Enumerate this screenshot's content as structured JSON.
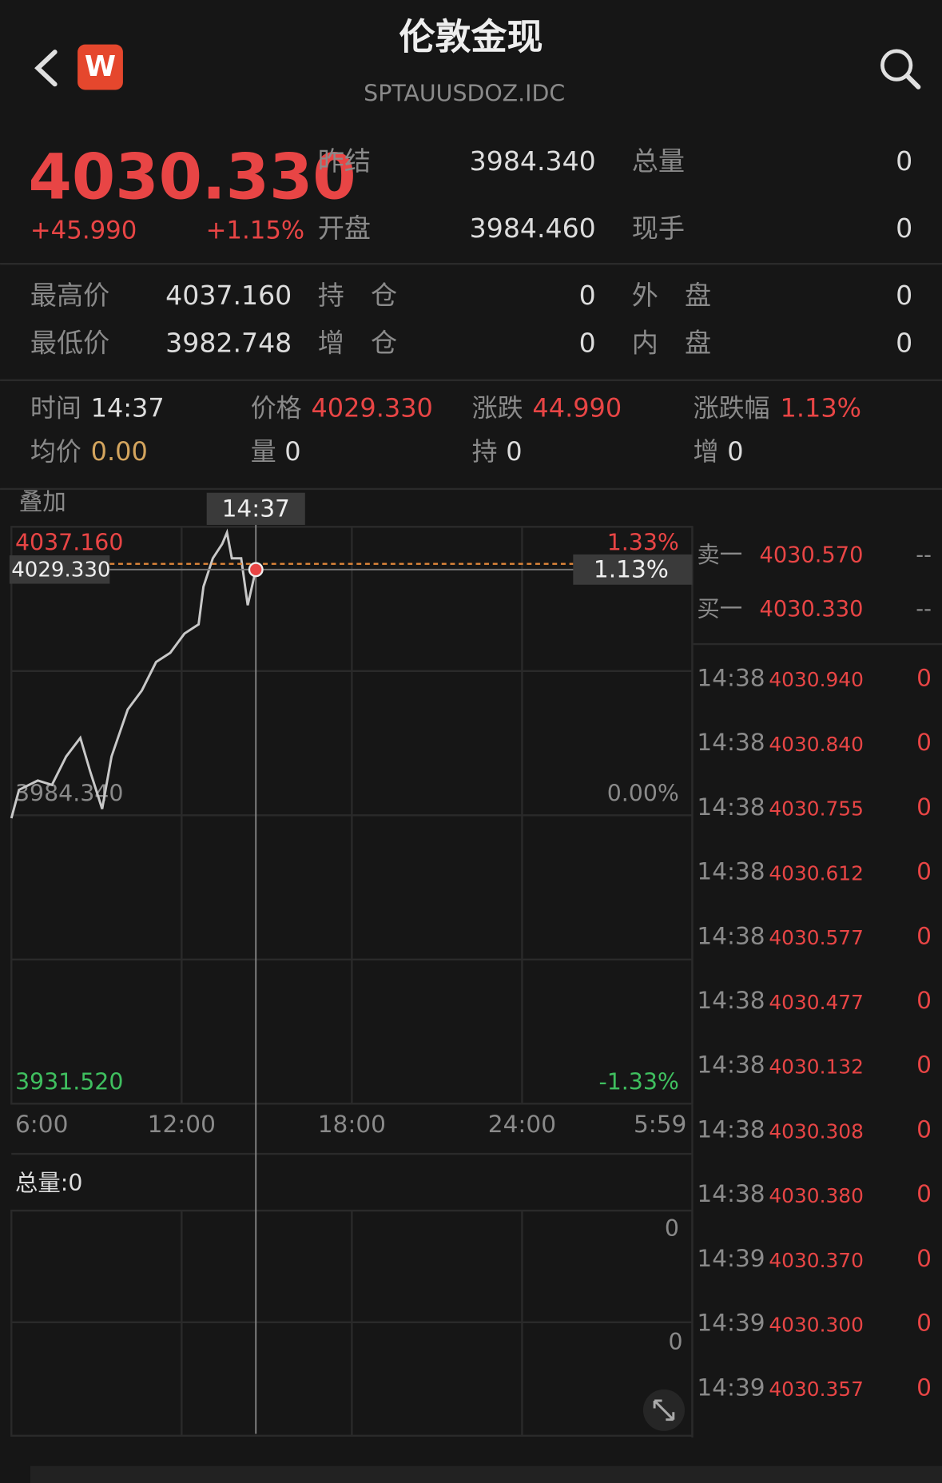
{
  "header": {
    "title": "伦敦金现",
    "code": "SPTAUUSDOZ.IDC",
    "logo": "W"
  },
  "quote": {
    "price": "4030.330",
    "change": "+45.990",
    "change_pct": "+1.15%"
  },
  "stats": {
    "rows": [
      [
        [
          "昨结",
          "3984.340"
        ],
        [
          "总量",
          "0"
        ]
      ],
      [
        [
          "开盘",
          "3984.460"
        ],
        [
          "现手",
          "0"
        ]
      ],
      [
        [
          "最高价",
          "4037.160"
        ],
        [
          "持　仓",
          "0"
        ],
        [
          "外　盘",
          "0"
        ]
      ],
      [
        [
          "最低价",
          "3982.748"
        ],
        [
          "增　仓",
          "0"
        ],
        [
          "内　盘",
          "0"
        ]
      ]
    ]
  },
  "cursor_info": {
    "rows": [
      [
        [
          "时间",
          "14:37"
        ],
        [
          "价格",
          "4029.330"
        ],
        [
          "涨跌",
          "44.990"
        ],
        [
          "涨跌幅",
          "1.13%"
        ]
      ],
      [
        [
          "均价",
          "0.00"
        ],
        [
          "量",
          "0"
        ],
        [
          "持",
          "0"
        ],
        [
          "增",
          "0"
        ]
      ]
    ]
  },
  "chart_data": {
    "type": "line",
    "overlay_label": "叠加",
    "x": [
      0,
      0.27,
      0.93,
      1.43,
      1.93,
      2.43,
      2.77,
      3.2,
      3.53,
      4.1,
      4.6,
      5.1,
      5.6,
      6.1,
      6.6,
      6.77,
      7.1,
      7.43,
      7.6,
      7.77,
      8.1,
      8.33,
      8.617
    ],
    "series": [
      {
        "color": "#c8c8c8",
        "values": [
          3983.8,
          3989,
          3990.7,
          3989.9,
          3995.1,
          3998.5,
          3992.5,
          3985.5,
          3995.1,
          4003.7,
          4007.2,
          4012.4,
          4014.1,
          4017.6,
          4019.3,
          4026.2,
          4031.4,
          4034,
          4036.1,
          4031.4,
          4031.4,
          4022.8,
          4029.33
        ]
      }
    ],
    "xlim": [
      0,
      24
    ],
    "xticks": [
      {
        "value": 0,
        "label": "6:00"
      },
      {
        "value": 6,
        "label": "12:00"
      },
      {
        "value": 12,
        "label": "18:00"
      },
      {
        "value": 18,
        "label": "24:00"
      },
      {
        "value": 23.98,
        "label": "5:59"
      }
    ],
    "ylim": [
      3931.52,
      4037.16
    ],
    "yticks": [
      {
        "value": 4037.16,
        "label": "4037.160"
      },
      {
        "value": 3984.34,
        "label": "3984.340"
      },
      {
        "value": 3931.52,
        "label": "3931.520"
      }
    ],
    "y2lim": [
      -1.33,
      1.33
    ],
    "y2ticks": [
      {
        "value": 1.33,
        "label": "1.33%"
      },
      {
        "value": 0,
        "label": "0.00%"
      },
      {
        "value": -1.33,
        "label": "-1.33%"
      }
    ],
    "cursor": {
      "x": 8.617,
      "time": "14:37",
      "price": {
        "value": 4029.33,
        "label": "4029.330"
      },
      "pct": {
        "value": 1.13,
        "label": "1.13%"
      }
    },
    "volume": {
      "label": "总量:0",
      "ticks": [
        "0",
        "0"
      ]
    }
  },
  "order_book": {
    "asks": [
      [
        "卖一",
        "4030.570",
        "--"
      ]
    ],
    "bids": [
      [
        "买一",
        "4030.330",
        "--"
      ]
    ]
  },
  "trades": [
    [
      "14:38",
      "4030.940",
      "0"
    ],
    [
      "14:38",
      "4030.840",
      "0"
    ],
    [
      "14:38",
      "4030.755",
      "0"
    ],
    [
      "14:38",
      "4030.612",
      "0"
    ],
    [
      "14:38",
      "4030.577",
      "0"
    ],
    [
      "14:38",
      "4030.477",
      "0"
    ],
    [
      "14:38",
      "4030.132",
      "0"
    ],
    [
      "14:38",
      "4030.308",
      "0"
    ],
    [
      "14:38",
      "4030.380",
      "0"
    ],
    [
      "14:39",
      "4030.370",
      "0"
    ],
    [
      "14:39",
      "4030.300",
      "0"
    ],
    [
      "14:39",
      "4030.357",
      "0"
    ]
  ]
}
